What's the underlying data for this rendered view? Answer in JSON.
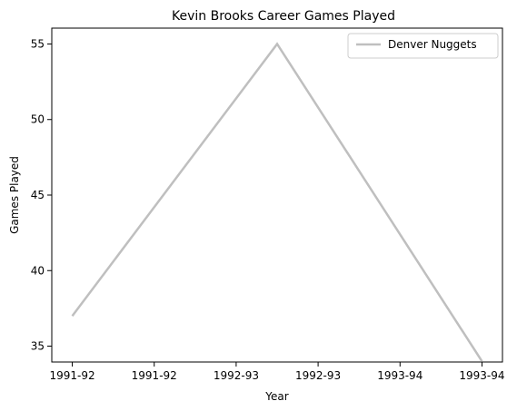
{
  "chart_data": {
    "type": "line",
    "title": "Kevin Brooks  Career Games Played",
    "xlabel": "Year",
    "ylabel": "Games Played",
    "x": [
      0,
      1,
      2
    ],
    "x_tick_labels": [
      "1991-92",
      "1991-92",
      "1992-93",
      "1992-93",
      "1993-94",
      "1993-94"
    ],
    "y_ticks": [
      35,
      40,
      45,
      50,
      55
    ],
    "ylim": [
      33.95,
      56.05
    ],
    "xlim": [
      -0.1,
      2.1
    ],
    "grid": false,
    "legend_position": "top-right",
    "series": [
      {
        "name": "Denver Nuggets",
        "color": "#bfbfbf",
        "x": [
          "1991-92",
          "1992-93",
          "1993-94"
        ],
        "values": [
          37,
          55,
          34
        ]
      }
    ]
  }
}
